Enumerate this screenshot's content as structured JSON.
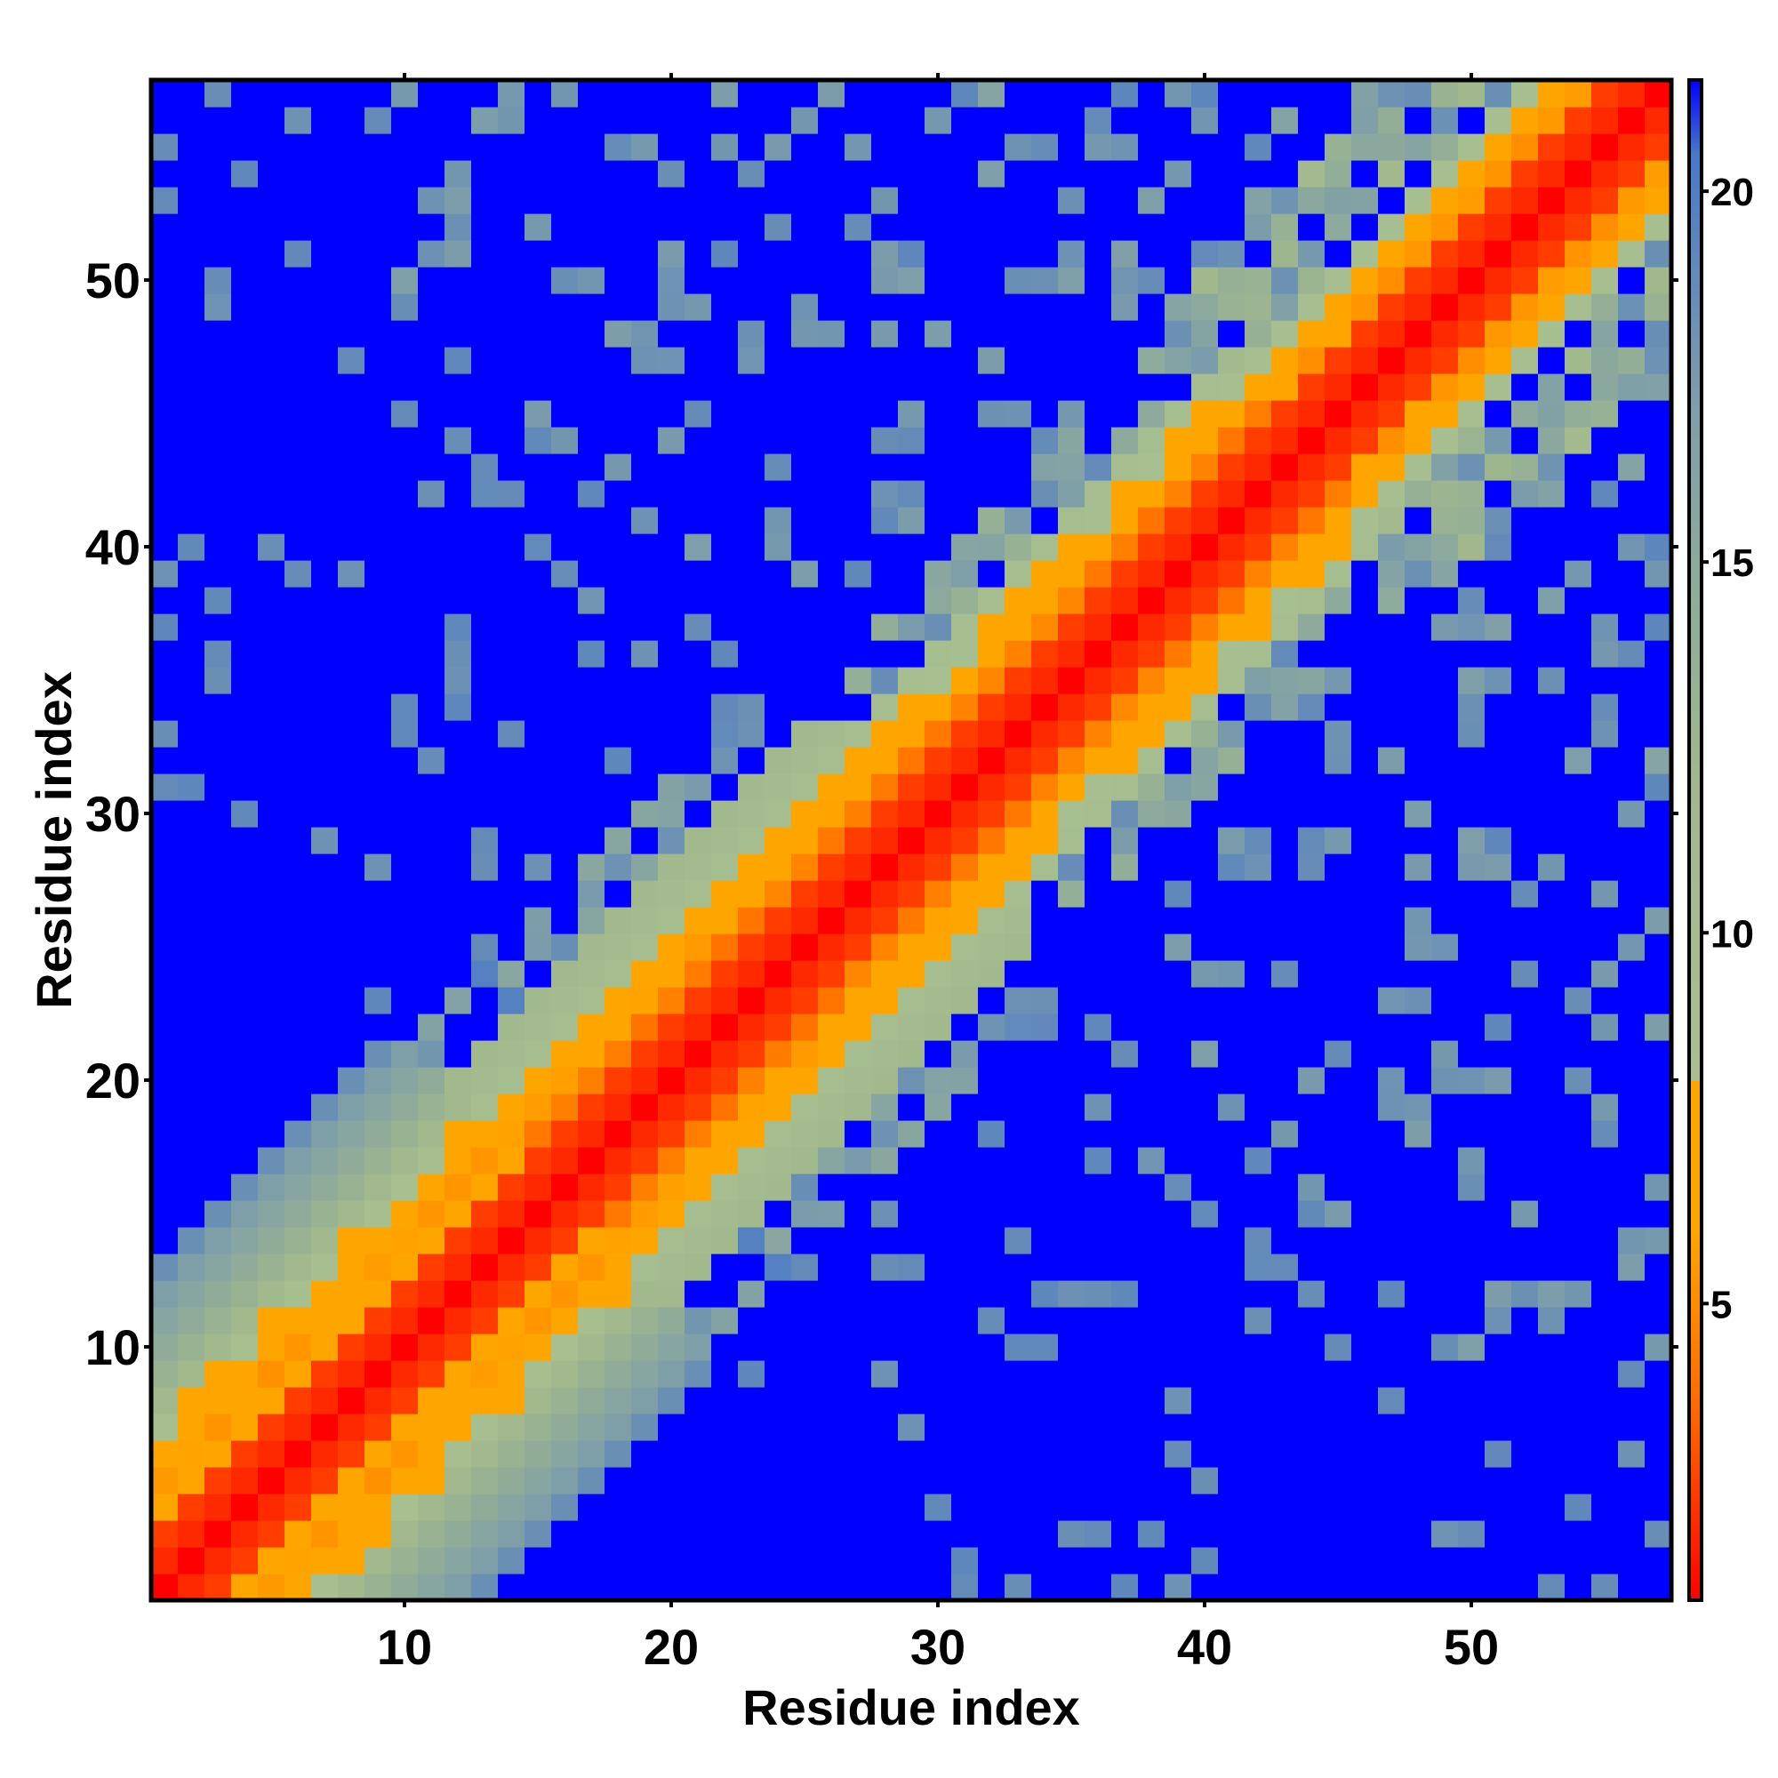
{
  "chart_data": {
    "type": "heatmap",
    "title": "",
    "xlabel": "Residue index",
    "ylabel": "Residue index",
    "n_residues": 57,
    "xlim": [
      0.5,
      57.5
    ],
    "ylim": [
      0.5,
      57.5
    ],
    "xticks": [
      10,
      20,
      30,
      40,
      50
    ],
    "yticks": [
      10,
      20,
      30,
      40,
      50
    ],
    "colorbar": {
      "range": [
        1,
        21.5
      ],
      "ticks": [
        5,
        10,
        15,
        20
      ],
      "stops": [
        {
          "value": 1,
          "color": "#ff0000"
        },
        {
          "value": 3.5,
          "color": "#ff6600"
        },
        {
          "value": 6,
          "color": "#ffa500"
        },
        {
          "value": 8,
          "color": "#ffa500"
        },
        {
          "value": 8.01,
          "color": "#a8c090"
        },
        {
          "value": 12,
          "color": "#a0b88c"
        },
        {
          "value": 17,
          "color": "#7f9fa8"
        },
        {
          "value": 20.5,
          "color": "#4a78c8"
        },
        {
          "value": 21.5,
          "color": "#0000ff"
        }
      ]
    },
    "background_color": "#0000ff",
    "cutoff": 21.5,
    "pattern": "Symmetric residue distance map: cell value approximates the inter-residue distance; values rise with |i-j| (red on the diagonal, orange near it, green/grey-blue at moderate separation) and blue beyond the cutoff."
  }
}
